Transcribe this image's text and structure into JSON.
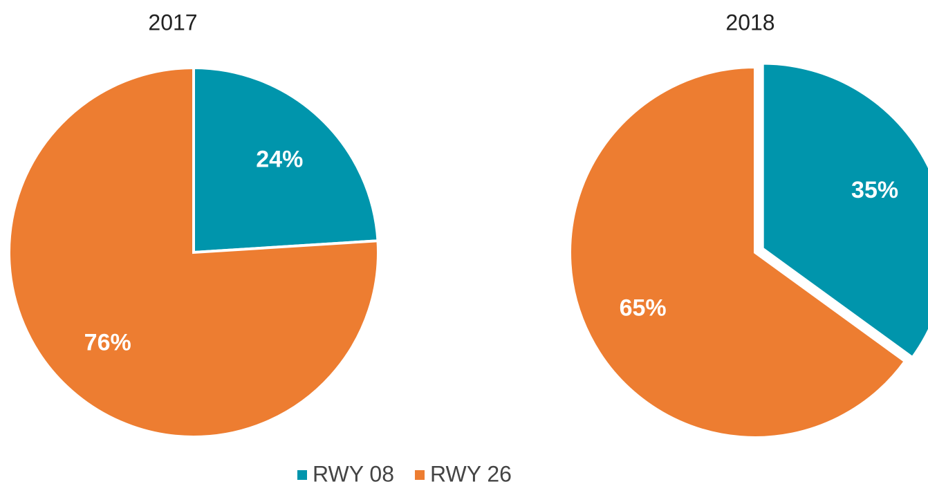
{
  "chart_data": [
    {
      "type": "pie",
      "title": "2017",
      "categories": [
        "RWY 08",
        "RWY 26"
      ],
      "values": [
        24,
        76
      ],
      "value_labels": [
        "24%",
        "76%"
      ],
      "colors": [
        "#0095ac",
        "#ed7d31"
      ]
    },
    {
      "type": "pie",
      "title": "2018",
      "categories": [
        "RWY 08",
        "RWY 26"
      ],
      "values": [
        35,
        65
      ],
      "value_labels": [
        "35%",
        "65%"
      ],
      "colors": [
        "#0095ac",
        "#ed7d31"
      ],
      "explode": [
        true,
        false
      ]
    }
  ]
}
